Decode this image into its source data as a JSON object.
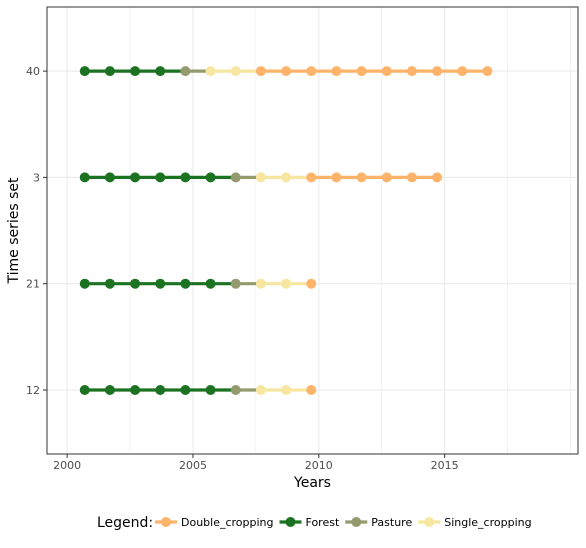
{
  "chart_data": {
    "type": "line",
    "xlabel": "Years",
    "ylabel": "Time series set",
    "xlim": [
      1999.2,
      2020.3
    ],
    "xticks": [
      2000,
      2005,
      2010,
      2015
    ],
    "y_categories": [
      "12",
      "21",
      "3",
      "40"
    ],
    "grid": true,
    "legend": {
      "title": "Legend:",
      "position": "bottom",
      "entries": [
        "Double_cropping",
        "Forest",
        "Pasture",
        "Single_cropping"
      ]
    },
    "colors": {
      "Double_cropping": "#FDB46A",
      "Forest": "#1B7322",
      "Pasture": "#959A6E",
      "Single_cropping": "#F7E6A0"
    },
    "series": [
      {
        "set": "40",
        "x": [
          2000.7,
          2001.7,
          2002.7,
          2003.7,
          2004.7,
          2005.7,
          2006.7,
          2007.7,
          2008.7,
          2009.7,
          2010.7,
          2011.7,
          2012.7,
          2013.7,
          2014.7,
          2015.7,
          2016.7
        ],
        "classes": [
          "Forest",
          "Forest",
          "Forest",
          "Forest",
          "Pasture",
          "Single_cropping",
          "Single_cropping",
          "Double_cropping",
          "Double_cropping",
          "Double_cropping",
          "Double_cropping",
          "Double_cropping",
          "Double_cropping",
          "Double_cropping",
          "Double_cropping",
          "Double_cropping",
          "Double_cropping"
        ]
      },
      {
        "set": "3",
        "x": [
          2000.7,
          2001.7,
          2002.7,
          2003.7,
          2004.7,
          2005.7,
          2006.7,
          2007.7,
          2008.7,
          2009.7,
          2010.7,
          2011.7,
          2012.7,
          2013.7,
          2014.7
        ],
        "classes": [
          "Forest",
          "Forest",
          "Forest",
          "Forest",
          "Forest",
          "Forest",
          "Pasture",
          "Single_cropping",
          "Single_cropping",
          "Double_cropping",
          "Double_cropping",
          "Double_cropping",
          "Double_cropping",
          "Double_cropping",
          "Double_cropping"
        ]
      },
      {
        "set": "21",
        "x": [
          2000.7,
          2001.7,
          2002.7,
          2003.7,
          2004.7,
          2005.7,
          2006.7,
          2007.7,
          2008.7,
          2009.7
        ],
        "classes": [
          "Forest",
          "Forest",
          "Forest",
          "Forest",
          "Forest",
          "Forest",
          "Pasture",
          "Single_cropping",
          "Single_cropping",
          "Double_cropping"
        ]
      },
      {
        "set": "12",
        "x": [
          2000.7,
          2001.7,
          2002.7,
          2003.7,
          2004.7,
          2005.7,
          2006.7,
          2007.7,
          2008.7,
          2009.7
        ],
        "classes": [
          "Forest",
          "Forest",
          "Forest",
          "Forest",
          "Forest",
          "Forest",
          "Pasture",
          "Single_cropping",
          "Single_cropping",
          "Double_cropping"
        ]
      }
    ]
  }
}
